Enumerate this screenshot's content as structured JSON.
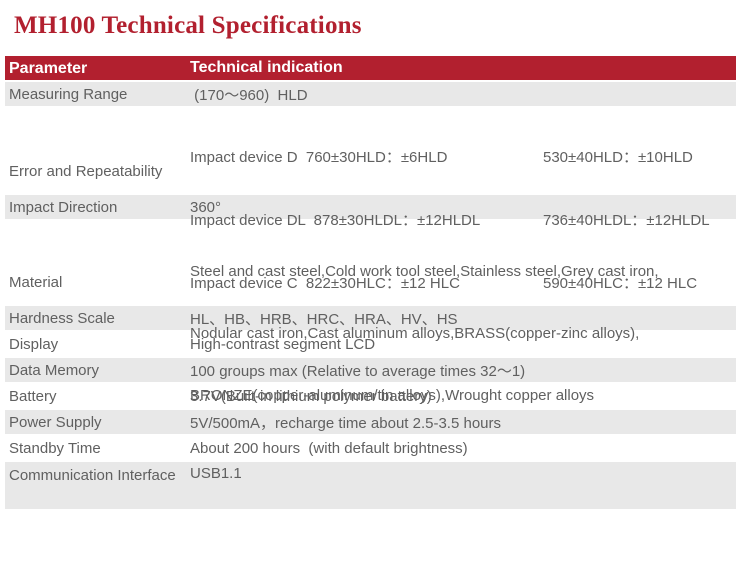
{
  "title": "MH100 Technical Specifications",
  "colors": {
    "accent_red": "#b2202f",
    "row_gray": "#e8e8e8",
    "text_gray": "#606060",
    "header_text": "#ffffff"
  },
  "table": {
    "headers": [
      "Parameter",
      "Technical indication"
    ],
    "rows": [
      {
        "param": "Measuring Range",
        "value": " (170～960)  HLD"
      },
      {
        "param": "Error and Repeatability",
        "lines": [
          {
            "left": "Impact device D  760±30HLD：±6HLD",
            "right": "530±40HLD：±10HLD"
          },
          {
            "left": "Impact device DL  878±30HLDL：±12HLDL",
            "right": "736±40HLDL：±12HLDL"
          },
          {
            "left": "Impact device C  822±30HLC：±12 HLC",
            "right": "590±40HLC：±12 HLC"
          }
        ]
      },
      {
        "param": "Impact Direction",
        "value": "360°"
      },
      {
        "param": "Material",
        "lines": [
          "Steel and cast steel,Cold work tool steel,Stainless steel,Grey cast iron,",
          "Nodular cast iron,Cast aluminum alloys,BRASS(copper-zinc alloys),",
          "BRONZE(copper-aluminum/tin alloys),Wrought copper alloys"
        ]
      },
      {
        "param": "Hardness Scale",
        "value": "HL、HB、HRB、HRC、HRA、HV、HS"
      },
      {
        "param": "Display",
        "value": "High-contrast segment LCD"
      },
      {
        "param": "Data Memory",
        "value": "100 groups max (Relative to average times 32～1)"
      },
      {
        "param": "Battery",
        "value": "3.7V(Built-in lithium polymer battery)"
      },
      {
        "param": "Power Supply",
        "value": "5V/500mA，recharge time about 2.5-3.5 hours"
      },
      {
        "param": "Standby Time",
        "value": "About 200 hours  (with default brightness)"
      },
      {
        "param": "Communication Interface",
        "value": "USB1.1"
      }
    ]
  }
}
